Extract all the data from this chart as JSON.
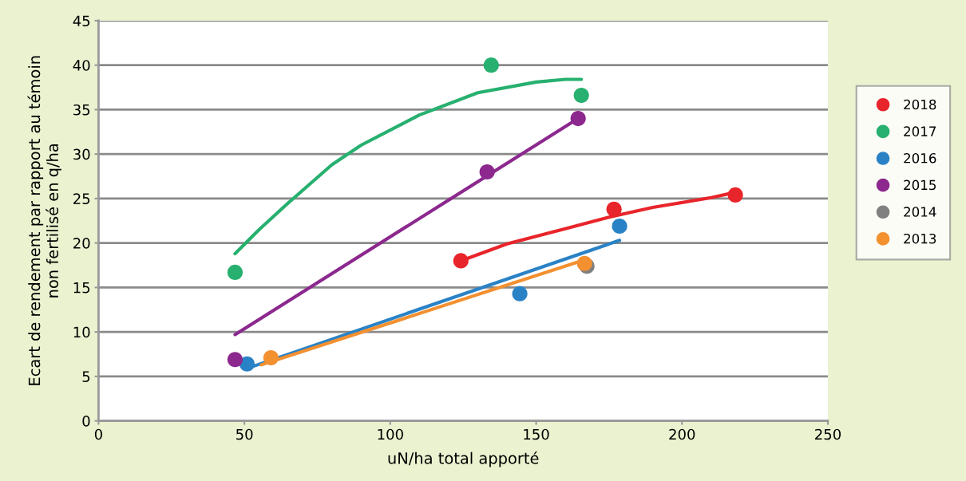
{
  "chart_data": {
    "type": "scatter",
    "xlabel": "uN/ha total apporté",
    "ylabel": "Ecart de rendement par rapport au témoin\nnon fertilisé en q/ha",
    "xlim": [
      0,
      250
    ],
    "xticks": [
      0,
      50,
      100,
      150,
      200,
      250
    ],
    "ylim": [
      0,
      45
    ],
    "yticks": [
      0,
      5,
      10,
      15,
      20,
      25,
      30,
      35,
      40,
      45
    ],
    "grid": "y",
    "legend": "right",
    "marker": "circle",
    "series": [
      {
        "name": "2018",
        "color": "#e8252b",
        "x": [
          124.2,
          176.7,
          218.3
        ],
        "values": [
          18.0,
          23.8,
          25.4
        ]
      },
      {
        "name": "2017",
        "color": "#27b06f",
        "x": [
          46.8,
          134.6,
          165.5
        ],
        "values": [
          16.7,
          40.0,
          36.6
        ]
      },
      {
        "name": "2016",
        "color": "#2a82c6",
        "x": [
          50.9,
          144.4,
          178.6
        ],
        "values": [
          6.4,
          14.3,
          21.9
        ]
      },
      {
        "name": "2015",
        "color": "#8c288e",
        "x": [
          46.8,
          133.2,
          164.4
        ],
        "values": [
          6.9,
          28.0,
          34.0
        ]
      },
      {
        "name": "2014",
        "color": "#808080",
        "x": [
          167.4
        ],
        "values": [
          17.4
        ]
      },
      {
        "name": "2013",
        "color": "#f39030",
        "x": [
          59.1,
          166.6
        ],
        "values": [
          7.1,
          17.7
        ]
      },
      {
        "type": "line",
        "marker": "none",
        "color": "#e8252b",
        "x": [
          124.2,
          140,
          160,
          175,
          190,
          210,
          218.3
        ],
        "values": [
          18.0,
          19.9,
          21.6,
          22.9,
          24.0,
          25.1,
          25.7
        ]
      },
      {
        "type": "line",
        "marker": "none",
        "color": "#27b06f",
        "x": [
          46.8,
          55,
          65,
          80,
          90,
          110,
          130,
          150,
          160,
          165.5
        ],
        "values": [
          18.8,
          21.5,
          24.5,
          28.8,
          31.0,
          34.4,
          36.9,
          38.1,
          38.4,
          38.4
        ]
      },
      {
        "type": "line",
        "marker": "none",
        "color": "#2a82c6",
        "x": [
          50.9,
          178.6
        ],
        "values": [
          5.9,
          20.3
        ]
      },
      {
        "type": "line",
        "marker": "none",
        "color": "#8c288e",
        "x": [
          46.8,
          164.4
        ],
        "values": [
          9.7,
          34.0
        ]
      },
      {
        "type": "line",
        "marker": "none",
        "color": "#f39030",
        "x": [
          55.8,
          166.6
        ],
        "values": [
          6.3,
          18.1
        ]
      }
    ]
  }
}
